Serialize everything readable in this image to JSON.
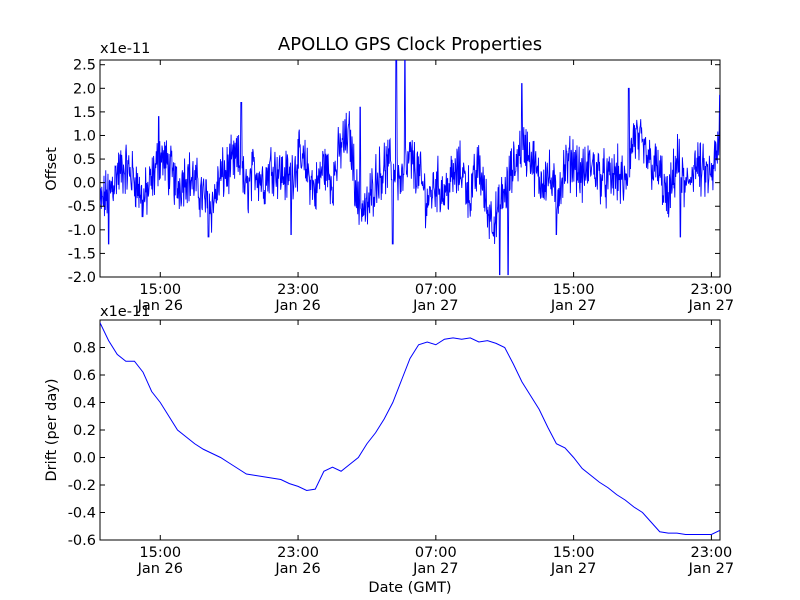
{
  "figure": {
    "title": "APOLLO GPS Clock Properties",
    "xlabel": "Date (GMT)"
  },
  "chart_data": [
    {
      "type": "line",
      "ylabel": "Offset",
      "y_multiplier": "x1e-11",
      "ylim": [
        -2.0,
        2.6
      ],
      "yticks": [
        "-2.0",
        "-1.5",
        "-1.0",
        "-0.5",
        "0.0",
        "0.5",
        "1.0",
        "1.5",
        "2.0",
        "2.5"
      ],
      "yticks_values": [
        -2.0,
        -1.5,
        -1.0,
        -0.5,
        0.0,
        0.5,
        1.0,
        1.5,
        2.0,
        2.5
      ],
      "xlim_hours": [
        11.5,
        47.5
      ],
      "xticks": [
        {
          "hour": 15,
          "time": "15:00",
          "date": "Jan 26"
        },
        {
          "hour": 23,
          "time": "23:00",
          "date": "Jan 26"
        },
        {
          "hour": 31,
          "time": "07:00",
          "date": "Jan 27"
        },
        {
          "hour": 39,
          "time": "15:00",
          "date": "Jan 27"
        },
        {
          "hour": 47,
          "time": "23:00",
          "date": "Jan 27"
        }
      ],
      "color": "#0000ff",
      "series": [
        {
          "x": [
            11.5,
            12.0,
            12.5,
            13.0,
            13.5,
            14.0,
            14.5,
            15.0,
            15.5,
            16.0,
            16.5,
            17.0,
            17.5,
            18.0,
            18.5,
            19.0,
            19.5,
            20.0,
            20.5,
            21.0,
            21.5,
            22.0,
            22.5,
            23.0,
            23.5,
            24.0,
            24.5,
            25.0,
            25.5,
            26.0,
            26.5,
            27.0,
            27.5,
            28.0,
            28.5,
            29.0,
            29.5,
            30.0,
            30.5,
            31.0,
            31.5,
            32.0,
            32.5,
            33.0,
            33.5,
            34.0,
            34.5,
            35.0,
            35.5,
            36.0,
            36.5,
            37.0,
            37.5,
            38.0,
            38.5,
            39.0,
            39.5,
            40.0,
            40.5,
            41.0,
            41.5,
            42.0,
            42.5,
            43.0,
            43.5,
            44.0,
            44.5,
            45.0,
            45.5,
            46.0,
            46.5,
            47.0,
            47.5
          ],
          "y": [
            -0.5,
            -0.2,
            0.2,
            0.3,
            0.1,
            -0.4,
            0.0,
            0.6,
            0.3,
            -0.1,
            0.2,
            0.0,
            -0.3,
            -0.5,
            0.1,
            0.3,
            0.5,
            -0.2,
            0.3,
            0.0,
            0.4,
            0.2,
            0.1,
            0.5,
            0.3,
            -0.2,
            0.4,
            0.0,
            0.8,
            1.0,
            -0.5,
            -0.6,
            0.1,
            0.3,
            0.4,
            0.0,
            0.5,
            0.2,
            -0.4,
            0.0,
            -0.2,
            0.1,
            0.3,
            -0.3,
            0.4,
            -0.6,
            -0.8,
            -0.2,
            0.3,
            0.8,
            0.6,
            0.0,
            0.2,
            -0.3,
            0.3,
            0.5,
            0.1,
            0.4,
            0.2,
            0.0,
            0.2,
            -0.1,
            1.0,
            0.7,
            0.4,
            0.2,
            -0.5,
            0.5,
            -0.2,
            0.4,
            0.2,
            0.1,
            0.9
          ],
          "min_dips": [
            {
              "x": 12.0,
              "y": -1.3
            },
            {
              "x": 17.8,
              "y": -1.15
            },
            {
              "x": 22.6,
              "y": -1.1
            },
            {
              "x": 28.5,
              "y": -1.3
            },
            {
              "x": 34.7,
              "y": -1.95
            },
            {
              "x": 35.2,
              "y": -1.95
            },
            {
              "x": 38.0,
              "y": -1.1
            },
            {
              "x": 45.2,
              "y": -1.15
            }
          ],
          "max_spikes": [
            {
              "x": 14.9,
              "y": 1.4
            },
            {
              "x": 19.7,
              "y": 1.7
            },
            {
              "x": 26.6,
              "y": 1.6
            },
            {
              "x": 28.7,
              "y": 2.6
            },
            {
              "x": 29.2,
              "y": 2.6
            },
            {
              "x": 36.0,
              "y": 2.1
            },
            {
              "x": 42.2,
              "y": 2.0
            },
            {
              "x": 47.5,
              "y": 1.85
            }
          ]
        }
      ]
    },
    {
      "type": "line",
      "ylabel": "Drift (per day)",
      "y_multiplier": "x1e-11",
      "ylim": [
        -0.6,
        1.0
      ],
      "yticks": [
        "-0.6",
        "-0.4",
        "-0.2",
        "0.0",
        "0.2",
        "0.4",
        "0.6",
        "0.8"
      ],
      "yticks_values": [
        -0.6,
        -0.4,
        -0.2,
        0.0,
        0.2,
        0.4,
        0.6,
        0.8
      ],
      "xlim_hours": [
        11.5,
        47.5
      ],
      "xticks": [
        {
          "hour": 15,
          "time": "15:00",
          "date": "Jan 26"
        },
        {
          "hour": 23,
          "time": "23:00",
          "date": "Jan 26"
        },
        {
          "hour": 31,
          "time": "07:00",
          "date": "Jan 27"
        },
        {
          "hour": 39,
          "time": "15:00",
          "date": "Jan 27"
        },
        {
          "hour": 47,
          "time": "23:00",
          "date": "Jan 27"
        }
      ],
      "color": "#0000ff",
      "series": [
        {
          "x": [
            11.5,
            12.0,
            12.5,
            13.0,
            13.5,
            14.0,
            14.5,
            15.0,
            15.5,
            16.0,
            16.5,
            17.0,
            17.5,
            18.0,
            18.5,
            19.0,
            19.5,
            20.0,
            20.5,
            21.0,
            21.5,
            22.0,
            22.5,
            23.0,
            23.5,
            24.0,
            24.5,
            25.0,
            25.5,
            26.0,
            26.5,
            27.0,
            27.5,
            28.0,
            28.5,
            29.0,
            29.5,
            30.0,
            30.5,
            31.0,
            31.5,
            32.0,
            32.5,
            33.0,
            33.5,
            34.0,
            34.5,
            35.0,
            35.5,
            36.0,
            36.5,
            37.0,
            37.5,
            38.0,
            38.5,
            39.0,
            39.5,
            40.0,
            40.5,
            41.0,
            41.5,
            42.0,
            42.5,
            43.0,
            43.5,
            44.0,
            44.5,
            45.0,
            45.5,
            46.0,
            46.5,
            47.0,
            47.5
          ],
          "y": [
            0.98,
            0.85,
            0.75,
            0.7,
            0.7,
            0.62,
            0.48,
            0.4,
            0.3,
            0.2,
            0.15,
            0.1,
            0.06,
            0.03,
            0.0,
            -0.04,
            -0.08,
            -0.12,
            -0.13,
            -0.14,
            -0.15,
            -0.16,
            -0.19,
            -0.21,
            -0.24,
            -0.23,
            -0.1,
            -0.07,
            -0.1,
            -0.05,
            0.0,
            0.1,
            0.18,
            0.28,
            0.4,
            0.56,
            0.72,
            0.82,
            0.84,
            0.82,
            0.86,
            0.87,
            0.86,
            0.87,
            0.84,
            0.85,
            0.83,
            0.8,
            0.68,
            0.55,
            0.45,
            0.35,
            0.22,
            0.1,
            0.07,
            0.0,
            -0.08,
            -0.13,
            -0.18,
            -0.22,
            -0.27,
            -0.31,
            -0.36,
            -0.4,
            -0.47,
            -0.54,
            -0.55,
            -0.55,
            -0.56,
            -0.56,
            -0.56,
            -0.56,
            -0.53
          ]
        }
      ]
    }
  ]
}
